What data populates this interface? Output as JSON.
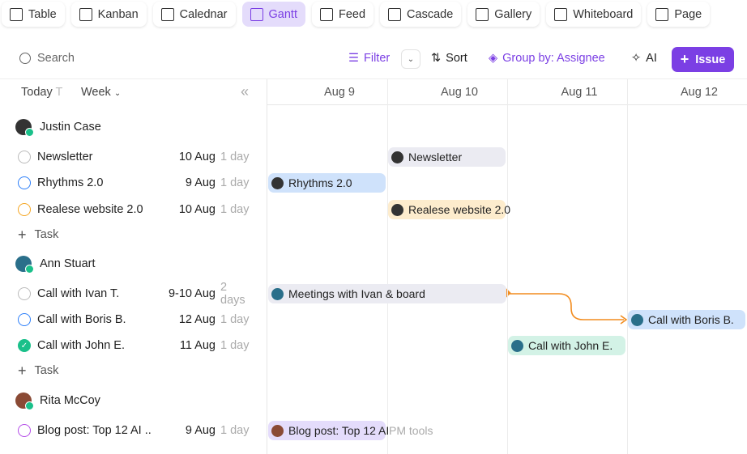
{
  "tabs": [
    {
      "label": "Table",
      "icon": "table-icon"
    },
    {
      "label": "Kanban",
      "icon": "kanban-icon"
    },
    {
      "label": "Calednar",
      "icon": "calendar-icon"
    },
    {
      "label": "Gantt",
      "icon": "gantt-icon",
      "active": true
    },
    {
      "label": "Feed",
      "icon": "feed-icon"
    },
    {
      "label": "Cascade",
      "icon": "cascade-icon"
    },
    {
      "label": "Gallery",
      "icon": "gallery-icon"
    },
    {
      "label": "Whiteboard",
      "icon": "whiteboard-icon"
    },
    {
      "label": "Page",
      "icon": "page-icon"
    }
  ],
  "toolbar": {
    "search_placeholder": "Search",
    "filter": "Filter",
    "sort": "Sort",
    "group_by": "Group by: Assignee",
    "ai": "AI",
    "issue": "Issue"
  },
  "timeline": {
    "today": "Today",
    "today_shortcut": "T",
    "scale": "Week",
    "days": [
      "Aug 9",
      "Aug 10",
      "Aug 11",
      "Aug 12"
    ]
  },
  "colors": {
    "accent": "#7b3fe4",
    "online": "#1ac08a",
    "dependency": "#f28c1e"
  },
  "groups": [
    {
      "name": "Justin Case",
      "avatar": "#333",
      "tasks": [
        {
          "name": "Newsletter",
          "date": "10 Aug",
          "duration": "1 day",
          "status": "gray",
          "bar": "Newsletter"
        },
        {
          "name": "Rhythms 2.0",
          "date": "9 Aug",
          "duration": "1 day",
          "status": "blue",
          "bar": "Rhythms 2.0"
        },
        {
          "name": "Realese website 2.0",
          "date": "10 Aug",
          "duration": "1 day",
          "status": "orange",
          "bar": "Realese website 2.0"
        }
      ],
      "add": "Task"
    },
    {
      "name": "Ann Stuart",
      "avatar": "#2a6f8a",
      "tasks": [
        {
          "name": "Call with Ivan T.",
          "date": "9-10 Aug",
          "duration": "2 days",
          "status": "gray",
          "bar": "Meetings with Ivan & board"
        },
        {
          "name": "Call with Boris B.",
          "date": "12 Aug",
          "duration": "1 day",
          "status": "blue",
          "bar": "Call with Boris B."
        },
        {
          "name": "Call with John E.",
          "date": "11 Aug",
          "duration": "1 day",
          "status": "done",
          "bar": "Call with John E."
        }
      ],
      "add": "Task"
    },
    {
      "name": "Rita McCoy",
      "avatar": "#8a4a35",
      "tasks": [
        {
          "name": "Blog post: Top 12 AI ...",
          "date": "9 Aug",
          "duration": "1 day",
          "status": "purple",
          "bar": "Blog post: Top 12 AI",
          "bar_overflow": "PM tools"
        }
      ]
    }
  ]
}
